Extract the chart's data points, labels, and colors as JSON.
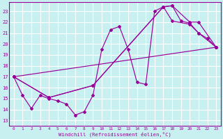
{
  "background_color": "#c8f0f0",
  "line_color": "#990099",
  "grid_color": "#ffffff",
  "xlabel": "Windchill (Refroidissement éolien,°C)",
  "ylim": [
    12.5,
    23.8
  ],
  "xlim": [
    -0.5,
    23.5
  ],
  "yticks": [
    13,
    14,
    15,
    16,
    17,
    18,
    19,
    20,
    21,
    22,
    23
  ],
  "xticks": [
    0,
    1,
    2,
    3,
    4,
    5,
    6,
    7,
    8,
    9,
    10,
    11,
    12,
    13,
    14,
    15,
    16,
    17,
    18,
    19,
    20,
    21,
    22,
    23
  ],
  "series": [
    {
      "x": [
        0,
        1,
        2,
        3,
        4,
        5,
        6,
        7,
        8,
        9,
        10,
        11,
        12,
        13,
        14,
        15,
        16,
        17,
        18,
        19,
        20,
        21,
        22,
        23
      ],
      "y": [
        17.0,
        15.3,
        14.1,
        15.3,
        15.0,
        14.8,
        14.5,
        13.5,
        13.8,
        15.3,
        19.5,
        21.3,
        21.6,
        19.5,
        16.5,
        16.3,
        23.0,
        23.4,
        23.5,
        22.1,
        21.9,
        21.0,
        20.5,
        19.7
      ]
    },
    {
      "x": [
        0,
        23
      ],
      "y": [
        17.0,
        19.7
      ]
    },
    {
      "x": [
        0,
        4,
        9,
        17,
        18,
        20,
        21,
        23
      ],
      "y": [
        17.0,
        15.1,
        16.2,
        23.4,
        23.5,
        22.0,
        22.0,
        19.7
      ]
    },
    {
      "x": [
        0,
        4,
        9,
        17,
        18,
        20,
        21,
        23
      ],
      "y": [
        17.0,
        15.1,
        16.2,
        23.4,
        22.1,
        21.8,
        21.0,
        19.7
      ]
    }
  ]
}
